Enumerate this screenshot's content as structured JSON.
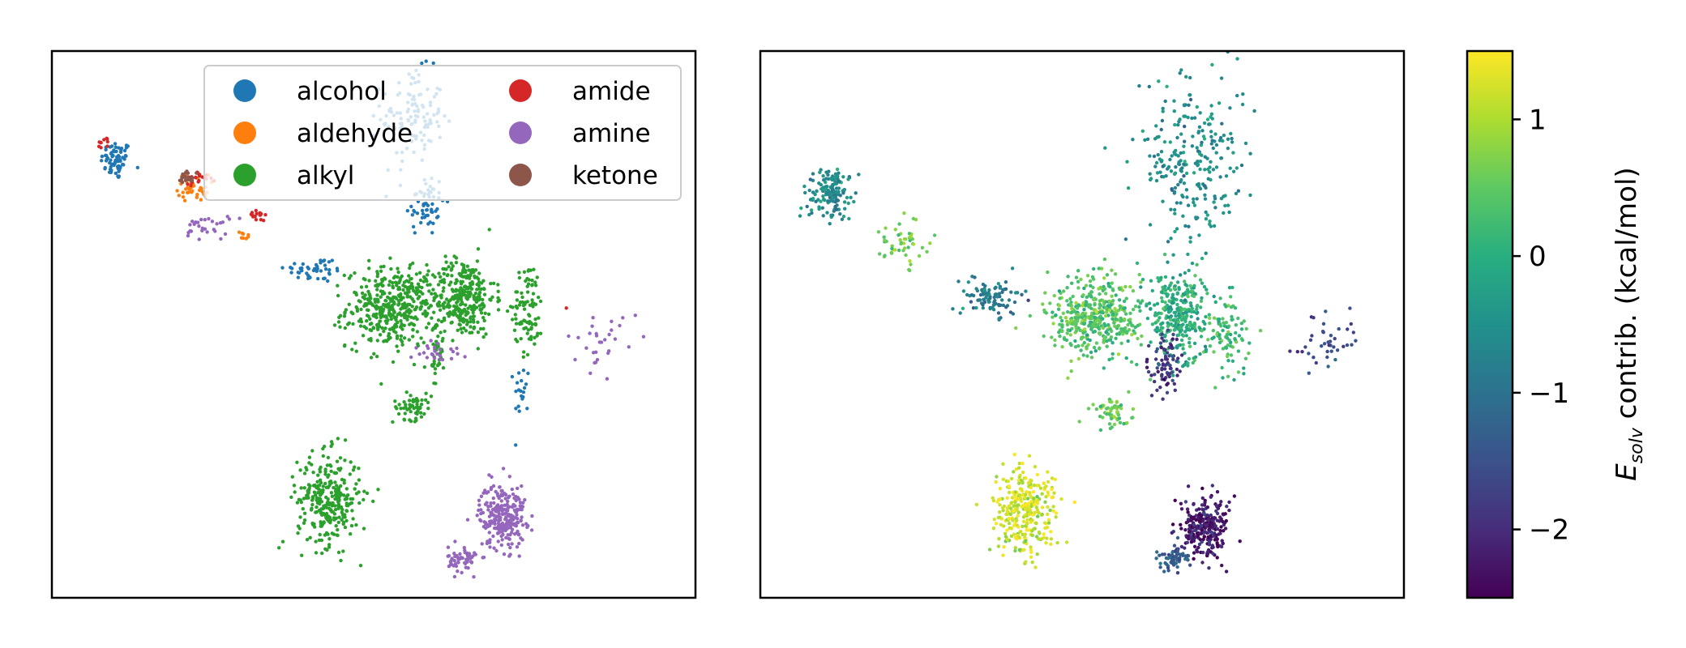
{
  "chart_data": [
    {
      "type": "scatter",
      "title": "",
      "xlabel": "",
      "ylabel": "",
      "xticks": false,
      "yticks": false,
      "legend": {
        "placement": "upper-right",
        "columns": 2,
        "entries": [
          "alcohol",
          "aldehyde",
          "alkyl",
          "amide",
          "amine",
          "ketone"
        ]
      },
      "series": [
        {
          "name": "alcohol",
          "color": "#1f77b4",
          "clusters": [
            {
              "cx": 0.1,
              "cy": 0.8,
              "rx": 0.02,
              "ry": 0.03,
              "n": 70
            },
            {
              "cx": 0.58,
              "cy": 0.72,
              "rx": 0.025,
              "ry": 0.05,
              "n": 60
            },
            {
              "cx": 0.41,
              "cy": 0.6,
              "rx": 0.04,
              "ry": 0.02,
              "n": 45
            },
            {
              "cx": 0.73,
              "cy": 0.38,
              "rx": 0.01,
              "ry": 0.04,
              "n": 20
            },
            {
              "cx": 0.56,
              "cy": 0.88,
              "rx": 0.04,
              "ry": 0.07,
              "n": 120
            }
          ]
        },
        {
          "name": "aldehyde",
          "color": "#ff7f0e",
          "clusters": [
            {
              "cx": 0.22,
              "cy": 0.75,
              "rx": 0.02,
              "ry": 0.02,
              "n": 40
            },
            {
              "cx": 0.3,
              "cy": 0.66,
              "rx": 0.01,
              "ry": 0.01,
              "n": 8
            }
          ]
        },
        {
          "name": "alkyl",
          "color": "#2ca02c",
          "clusters": [
            {
              "cx": 0.53,
              "cy": 0.53,
              "rx": 0.06,
              "ry": 0.06,
              "n": 420
            },
            {
              "cx": 0.64,
              "cy": 0.55,
              "rx": 0.04,
              "ry": 0.06,
              "n": 300
            },
            {
              "cx": 0.74,
              "cy": 0.53,
              "rx": 0.02,
              "ry": 0.07,
              "n": 90
            },
            {
              "cx": 0.56,
              "cy": 0.35,
              "rx": 0.025,
              "ry": 0.02,
              "n": 60
            },
            {
              "cx": 0.43,
              "cy": 0.18,
              "rx": 0.04,
              "ry": 0.07,
              "n": 300
            },
            {
              "cx": 0.6,
              "cy": 0.44,
              "rx": 0.01,
              "ry": 0.06,
              "n": 40
            }
          ]
        },
        {
          "name": "amide",
          "color": "#d62728",
          "clusters": [
            {
              "cx": 0.32,
              "cy": 0.7,
              "rx": 0.01,
              "ry": 0.01,
              "n": 15
            },
            {
              "cx": 0.23,
              "cy": 0.77,
              "rx": 0.02,
              "ry": 0.01,
              "n": 20
            },
            {
              "cx": 0.08,
              "cy": 0.83,
              "rx": 0.01,
              "ry": 0.01,
              "n": 10
            },
            {
              "cx": 0.8,
              "cy": 0.53,
              "rx": 0.002,
              "ry": 0.002,
              "n": 1
            }
          ]
        },
        {
          "name": "amine",
          "color": "#9467bd",
          "clusters": [
            {
              "cx": 0.7,
              "cy": 0.15,
              "rx": 0.03,
              "ry": 0.05,
              "n": 250
            },
            {
              "cx": 0.64,
              "cy": 0.07,
              "rx": 0.02,
              "ry": 0.02,
              "n": 60
            },
            {
              "cx": 0.24,
              "cy": 0.68,
              "rx": 0.03,
              "ry": 0.02,
              "n": 30
            },
            {
              "cx": 0.6,
              "cy": 0.45,
              "rx": 0.03,
              "ry": 0.02,
              "n": 25
            },
            {
              "cx": 0.86,
              "cy": 0.47,
              "rx": 0.05,
              "ry": 0.04,
              "n": 30
            }
          ]
        },
        {
          "name": "ketone",
          "color": "#8c564b",
          "clusters": [
            {
              "cx": 0.21,
              "cy": 0.77,
              "rx": 0.01,
              "ry": 0.01,
              "n": 20
            }
          ]
        }
      ]
    },
    {
      "type": "scatter",
      "title": "",
      "xlabel": "",
      "ylabel": "",
      "xticks": false,
      "yticks": false,
      "colormap": "viridis",
      "clusters": [
        {
          "cx": 0.11,
          "cy": 0.74,
          "rx": 0.03,
          "ry": 0.04,
          "n": 150,
          "v": -0.6
        },
        {
          "cx": 0.36,
          "cy": 0.55,
          "rx": 0.04,
          "ry": 0.03,
          "n": 100,
          "v": -0.9
        },
        {
          "cx": 0.52,
          "cy": 0.51,
          "rx": 0.06,
          "ry": 0.06,
          "n": 420,
          "v": 0.4
        },
        {
          "cx": 0.65,
          "cy": 0.52,
          "rx": 0.04,
          "ry": 0.06,
          "n": 300,
          "v": 0.0
        },
        {
          "cx": 0.73,
          "cy": 0.48,
          "rx": 0.03,
          "ry": 0.06,
          "n": 90,
          "v": 0.2
        },
        {
          "cx": 0.55,
          "cy": 0.34,
          "rx": 0.025,
          "ry": 0.02,
          "n": 60,
          "v": 0.5
        },
        {
          "cx": 0.41,
          "cy": 0.16,
          "rx": 0.04,
          "ry": 0.07,
          "n": 300,
          "v": 1.2
        },
        {
          "cx": 0.69,
          "cy": 0.13,
          "rx": 0.03,
          "ry": 0.05,
          "n": 250,
          "v": -2.2
        },
        {
          "cx": 0.64,
          "cy": 0.07,
          "rx": 0.02,
          "ry": 0.02,
          "n": 60,
          "v": -1.3
        },
        {
          "cx": 0.67,
          "cy": 0.8,
          "rx": 0.07,
          "ry": 0.12,
          "n": 260,
          "v": -0.5
        },
        {
          "cx": 0.88,
          "cy": 0.47,
          "rx": 0.05,
          "ry": 0.04,
          "n": 40,
          "v": -1.6
        },
        {
          "cx": 0.63,
          "cy": 0.42,
          "rx": 0.02,
          "ry": 0.05,
          "n": 80,
          "v": -1.8
        },
        {
          "cx": 0.22,
          "cy": 0.65,
          "rx": 0.03,
          "ry": 0.03,
          "n": 50,
          "v": 0.6
        }
      ],
      "colorbar": {
        "label_main": "E",
        "label_sub": "solv",
        "label_rest": " contrib. (kcal/mol)",
        "vmin": -2.5,
        "vmax": 1.5,
        "ticks": [
          {
            "value": 1,
            "label": "1"
          },
          {
            "value": 0,
            "label": "0"
          },
          {
            "value": -1,
            "label": "−1"
          },
          {
            "value": -2,
            "label": "−2"
          }
        ]
      }
    }
  ]
}
